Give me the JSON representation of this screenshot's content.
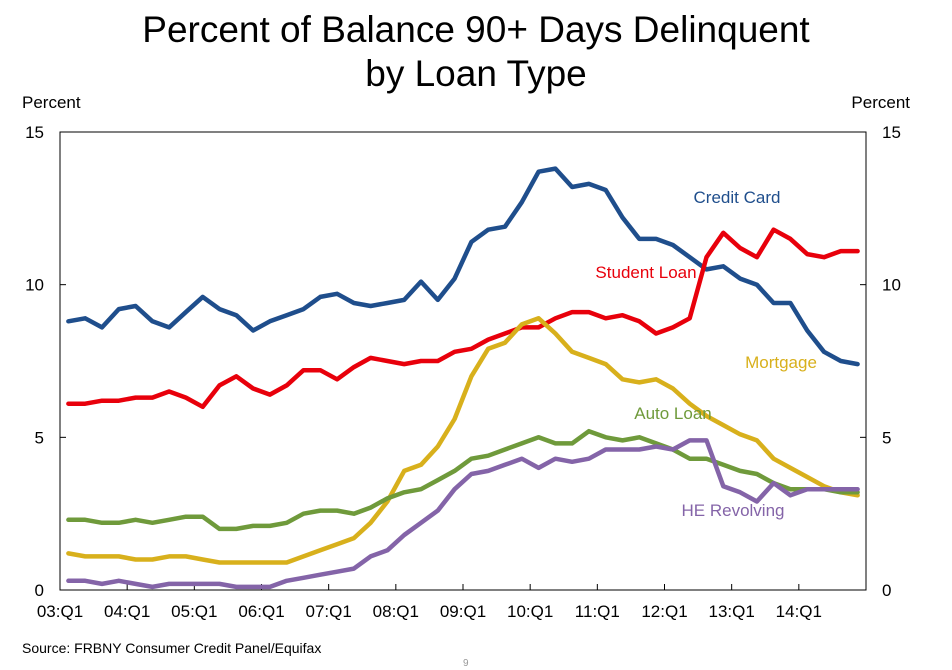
{
  "header": {
    "title_line1": "Percent of Balance 90+ Days Delinquent",
    "title_line2": "by Loan Type",
    "left_unit": "Percent",
    "right_unit": "Percent"
  },
  "footer": {
    "source": "Source: FRBNY Consumer Credit Panel/Equifax",
    "page_number": "9"
  },
  "chart_data": {
    "type": "line",
    "title": "Percent of Balance 90+ Days Delinquent by Loan Type",
    "xlabel": "",
    "ylabel": "Percent",
    "ylim": [
      0,
      15
    ],
    "yticks": [
      "0",
      "5",
      "10",
      "15"
    ],
    "xtick_labels": [
      "03:Q1",
      "04:Q1",
      "05:Q1",
      "06:Q1",
      "07:Q1",
      "08:Q1",
      "09:Q1",
      "10:Q1",
      "11:Q1",
      "12:Q1",
      "13:Q1",
      "14:Q1"
    ],
    "x_start": "2003:Q1",
    "x_end": "2014:Q4",
    "n_points": 48,
    "series": [
      {
        "name": "Credit Card",
        "color": "#1f4e8c",
        "values": [
          8.8,
          8.9,
          8.6,
          9.2,
          9.3,
          8.8,
          8.6,
          9.1,
          9.6,
          9.2,
          9.0,
          8.5,
          8.8,
          9.0,
          9.2,
          9.6,
          9.7,
          9.4,
          9.3,
          9.4,
          9.5,
          10.1,
          9.5,
          10.2,
          11.4,
          11.8,
          11.9,
          12.7,
          13.7,
          13.8,
          13.2,
          13.3,
          13.1,
          12.2,
          11.5,
          11.5,
          11.3,
          10.9,
          10.5,
          10.6,
          10.2,
          10.0,
          9.4,
          9.4,
          8.5,
          7.8,
          7.5,
          7.4
        ]
      },
      {
        "name": "Student Loan",
        "color": "#e8000b",
        "values": [
          6.1,
          6.1,
          6.2,
          6.2,
          6.3,
          6.3,
          6.5,
          6.3,
          6.0,
          6.7,
          7.0,
          6.6,
          6.4,
          6.7,
          7.2,
          7.2,
          6.9,
          7.3,
          7.6,
          7.5,
          7.4,
          7.5,
          7.5,
          7.8,
          7.9,
          8.2,
          8.4,
          8.6,
          8.6,
          8.9,
          9.1,
          9.1,
          8.9,
          9.0,
          8.8,
          8.4,
          8.6,
          8.9,
          10.9,
          11.7,
          11.2,
          10.9,
          11.8,
          11.5,
          11.0,
          10.9,
          11.1,
          11.1
        ]
      },
      {
        "name": "Mortgage",
        "color": "#d8b01c",
        "values": [
          1.2,
          1.1,
          1.1,
          1.1,
          1.0,
          1.0,
          1.1,
          1.1,
          1.0,
          0.9,
          0.9,
          0.9,
          0.9,
          0.9,
          1.1,
          1.3,
          1.5,
          1.7,
          2.2,
          2.9,
          3.9,
          4.1,
          4.7,
          5.6,
          7.0,
          7.9,
          8.1,
          8.7,
          8.9,
          8.4,
          7.8,
          7.6,
          7.4,
          6.9,
          6.8,
          6.9,
          6.6,
          6.1,
          5.7,
          5.4,
          5.1,
          4.9,
          4.3,
          4.0,
          3.7,
          3.4,
          3.2,
          3.1
        ]
      },
      {
        "name": "Auto Loan",
        "color": "#6f9a3b",
        "values": [
          2.3,
          2.3,
          2.2,
          2.2,
          2.3,
          2.2,
          2.3,
          2.4,
          2.4,
          2.0,
          2.0,
          2.1,
          2.1,
          2.2,
          2.5,
          2.6,
          2.6,
          2.5,
          2.7,
          3.0,
          3.2,
          3.3,
          3.6,
          3.9,
          4.3,
          4.4,
          4.6,
          4.8,
          5.0,
          4.8,
          4.8,
          5.2,
          5.0,
          4.9,
          5.0,
          4.8,
          4.6,
          4.3,
          4.3,
          4.1,
          3.9,
          3.8,
          3.5,
          3.3,
          3.3,
          3.3,
          3.2,
          3.2
        ]
      },
      {
        "name": "HE Revolving",
        "color": "#8464a8",
        "values": [
          0.3,
          0.3,
          0.2,
          0.3,
          0.2,
          0.1,
          0.2,
          0.2,
          0.2,
          0.2,
          0.1,
          0.1,
          0.1,
          0.3,
          0.4,
          0.5,
          0.6,
          0.7,
          1.1,
          1.3,
          1.8,
          2.2,
          2.6,
          3.3,
          3.8,
          3.9,
          4.1,
          4.3,
          4.0,
          4.3,
          4.2,
          4.3,
          4.6,
          4.6,
          4.6,
          4.7,
          4.6,
          4.9,
          4.9,
          3.4,
          3.2,
          2.9,
          3.5,
          3.1,
          3.3,
          3.3,
          3.3,
          3.3
        ]
      }
    ]
  }
}
